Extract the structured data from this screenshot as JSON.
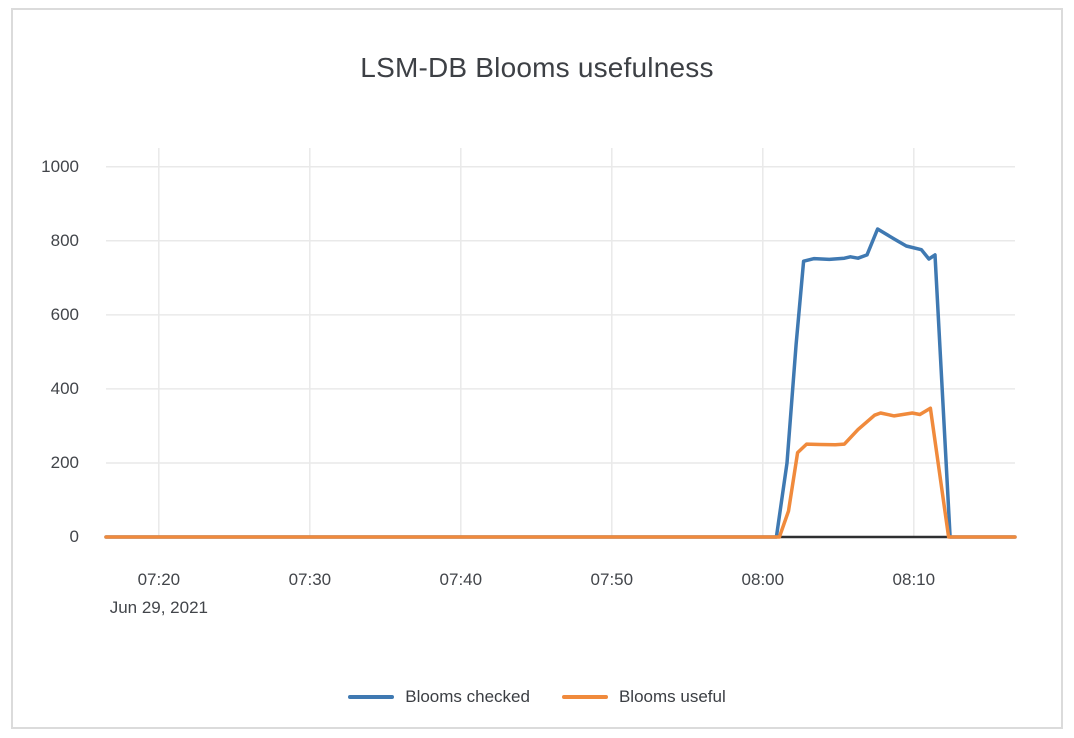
{
  "chart_data": {
    "type": "line",
    "title": "LSM-DB Blooms usefulness",
    "x_axis": {
      "unit": "time-of-day",
      "date_label": "Jun 29, 2021",
      "tick_labels": [
        "07:20",
        "07:30",
        "07:40",
        "07:50",
        "08:00",
        "08:10"
      ],
      "tick_minutes": [
        20,
        30,
        40,
        50,
        60,
        70
      ],
      "range_minutes": [
        16.5,
        76.7
      ]
    },
    "y_axis": {
      "tick_labels": [
        "0",
        "200",
        "400",
        "600",
        "800",
        "1000"
      ],
      "tick_values": [
        0,
        200,
        400,
        600,
        800,
        1000
      ],
      "range": [
        0,
        1040
      ]
    },
    "grid": true,
    "legend_position": "bottom-center",
    "gridline_color": "#e9e9e9",
    "zero_line_color": "#2e2f31",
    "series": [
      {
        "name": "Blooms checked",
        "color": "#3f79b2",
        "points": [
          [
            16.5,
            0
          ],
          [
            60.9,
            0
          ],
          [
            61.6,
            200
          ],
          [
            62.2,
            520
          ],
          [
            62.7,
            745
          ],
          [
            63.4,
            752
          ],
          [
            64.4,
            750
          ],
          [
            65.4,
            753
          ],
          [
            65.8,
            757
          ],
          [
            66.3,
            753
          ],
          [
            66.9,
            762
          ],
          [
            67.6,
            832
          ],
          [
            68.7,
            805
          ],
          [
            69.5,
            786
          ],
          [
            70.5,
            776
          ],
          [
            71.0,
            751
          ],
          [
            71.4,
            762
          ],
          [
            72.4,
            0
          ],
          [
            76.7,
            0
          ]
        ]
      },
      {
        "name": "Blooms useful",
        "color": "#f08a3c",
        "points": [
          [
            16.5,
            0
          ],
          [
            61.1,
            0
          ],
          [
            61.7,
            70
          ],
          [
            62.3,
            228
          ],
          [
            62.9,
            251
          ],
          [
            63.8,
            250
          ],
          [
            64.8,
            249
          ],
          [
            65.4,
            251
          ],
          [
            66.3,
            290
          ],
          [
            67.4,
            329
          ],
          [
            67.8,
            335
          ],
          [
            68.7,
            327
          ],
          [
            69.9,
            335
          ],
          [
            70.4,
            331
          ],
          [
            71.1,
            348
          ],
          [
            72.3,
            0
          ],
          [
            76.7,
            0
          ]
        ]
      }
    ]
  }
}
